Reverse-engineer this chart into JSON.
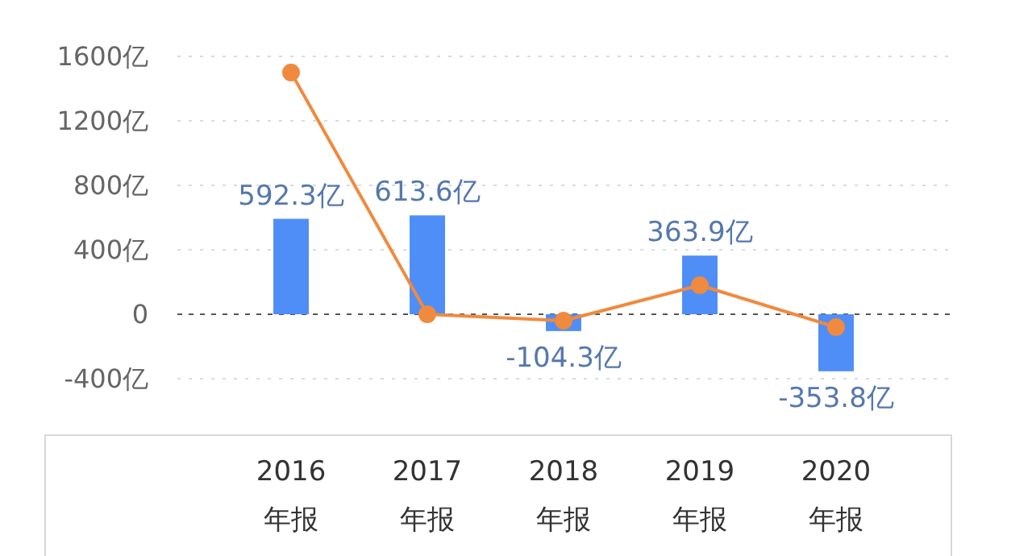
{
  "chart_data": {
    "type": "bar",
    "categories": [
      "2016\n年报",
      "2017\n年报",
      "2018\n年报",
      "2019\n年报",
      "2020\n年报"
    ],
    "series": [
      {
        "color": "#4f8ef7",
        "values": [
          592.3,
          613.6,
          -104.3,
          363.9,
          -353.8
        ],
        "value_labels": [
          "592.3亿",
          "613.6亿",
          "-104.3亿",
          "363.9亿",
          "-353.8亿"
        ]
      },
      {
        "type": "line",
        "color": "#f08a3e",
        "values": [
          1500,
          0,
          -40,
          180,
          -80
        ],
        "marker": "circle"
      }
    ],
    "ylim": [
      -400,
      1600
    ],
    "ref_lines": [
      {
        "axis": "y",
        "value": 0,
        "color": "#555555",
        "line_style": "dashed"
      }
    ],
    "yticks": [
      {
        "value": -400,
        "label": "-400亿"
      },
      0,
      {
        "value": 400,
        "label": "400亿"
      },
      {
        "value": 800,
        "label": "800亿"
      },
      {
        "value": 1200,
        "label": "1200亿"
      },
      {
        "value": 1600,
        "label": "1600亿"
      }
    ],
    "grid": "y"
  }
}
